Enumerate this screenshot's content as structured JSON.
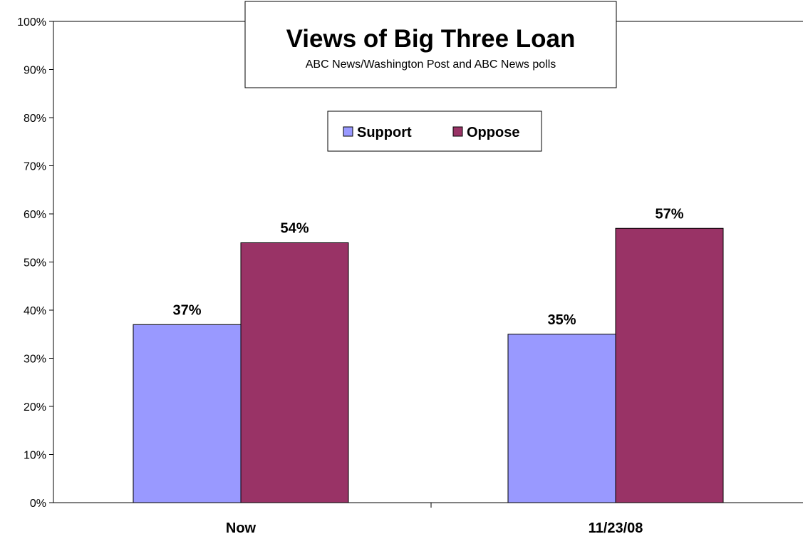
{
  "chart_data": {
    "type": "bar",
    "title": "Views of Big Three Loan",
    "subtitle": "ABC News/Washington Post and ABC News polls",
    "categories": [
      "Now",
      "11/23/08"
    ],
    "series": [
      {
        "name": "Support",
        "values": [
          37,
          35
        ],
        "labels": [
          "37%",
          "35%"
        ],
        "color": "#9999ff"
      },
      {
        "name": "Oppose",
        "values": [
          54,
          57
        ],
        "labels": [
          "54%",
          "57%"
        ],
        "color": "#993366"
      }
    ],
    "ylim": [
      0,
      100
    ],
    "yticks": [
      "0%",
      "10%",
      "20%",
      "30%",
      "40%",
      "50%",
      "60%",
      "70%",
      "80%",
      "90%",
      "100%"
    ],
    "xlabel": "",
    "ylabel": "",
    "grid": false,
    "legend_position": "top-center"
  }
}
